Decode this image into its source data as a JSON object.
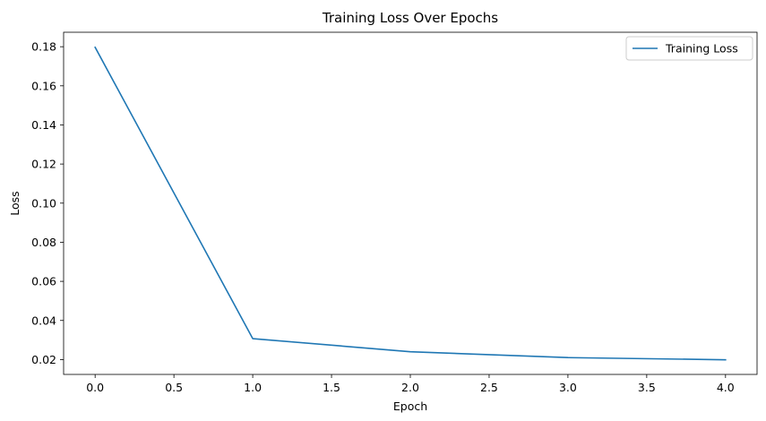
{
  "chart_data": {
    "type": "line",
    "title": "Training Loss Over Epochs",
    "xlabel": "Epoch",
    "ylabel": "Loss",
    "xlim": [
      -0.2,
      4.2
    ],
    "ylim": [
      0.0124,
      0.1874
    ],
    "xticks": [
      0.0,
      0.5,
      1.0,
      1.5,
      2.0,
      2.5,
      3.0,
      3.5,
      4.0
    ],
    "xtick_labels": [
      "0.0",
      "0.5",
      "1.0",
      "1.5",
      "2.0",
      "2.5",
      "3.0",
      "3.5",
      "4.0"
    ],
    "yticks": [
      0.02,
      0.04,
      0.06,
      0.08,
      0.1,
      0.12,
      0.14,
      0.16,
      0.18
    ],
    "ytick_labels": [
      "0.02",
      "0.04",
      "0.06",
      "0.08",
      "0.10",
      "0.12",
      "0.14",
      "0.16",
      "0.18"
    ],
    "grid": false,
    "legend_position": "top-right",
    "series": [
      {
        "name": "Training Loss",
        "color": "#1f77b4",
        "x": [
          0,
          1,
          2,
          3,
          4
        ],
        "y": [
          0.1797,
          0.0307,
          0.024,
          0.021,
          0.0199
        ]
      }
    ]
  }
}
